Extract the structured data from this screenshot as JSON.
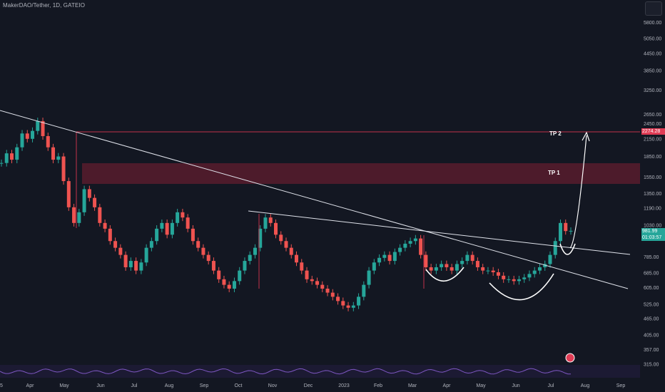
{
  "title": "MakerDAO/Tether, 1D, GATEIO",
  "chart_data": {
    "type": "candlestick",
    "price_axis": {
      "scale": "log",
      "ylim": [
        300,
        6500
      ],
      "ticks": [
        "5800.00",
        "5050.00",
        "4450.00",
        "3850.00",
        "3250.00",
        "2650.00",
        "2450.00",
        "2150.00",
        "1850.00",
        "1550.00",
        "1350.00",
        "1190.00",
        "1030.00",
        "785.00",
        "685.00",
        "605.00",
        "525.00",
        "465.00",
        "405.00",
        "357.00",
        "315.00"
      ]
    },
    "time_axis": {
      "ticks": [
        "5",
        "Apr",
        "May",
        "Jun",
        "Jul",
        "Aug",
        "Sep",
        "Oct",
        "Nov",
        "Dec",
        "2023",
        "Feb",
        "Mar",
        "Apr",
        "May",
        "Jun",
        "Jul",
        "Aug",
        "Sep"
      ]
    },
    "current_price": "981.99",
    "countdown": "01:03:57",
    "tp2_price": "2274.28",
    "target_zone": [
      1450,
      1750
    ],
    "annotations": [
      "TP 2",
      "TP 1"
    ],
    "closes": [
      1750,
      1900,
      1800,
      2000,
      2250,
      2150,
      2300,
      2500,
      2200,
      2000,
      1800,
      1850,
      1500,
      1200,
      1050,
      1150,
      1400,
      1300,
      1200,
      1050,
      1000,
      900,
      850,
      800,
      720,
      760,
      700,
      750,
      850,
      900,
      1000,
      1050,
      950,
      1050,
      1150,
      1100,
      1000,
      900,
      850,
      800,
      760,
      700,
      650,
      620,
      600,
      640,
      700,
      760,
      800,
      850,
      1000,
      1100,
      1050,
      950,
      900,
      850,
      800,
      750,
      700,
      650,
      640,
      620,
      600,
      580,
      560,
      540,
      520,
      510,
      520,
      560,
      620,
      700,
      750,
      780,
      800,
      760,
      820,
      850,
      880,
      900,
      920,
      800,
      720,
      700,
      720,
      740,
      720,
      700,
      740,
      760,
      800,
      760,
      720,
      700,
      700,
      690,
      670,
      650,
      650,
      640,
      650,
      660,
      680,
      700,
      720,
      740,
      800,
      900,
      1050,
      980,
      982
    ]
  }
}
